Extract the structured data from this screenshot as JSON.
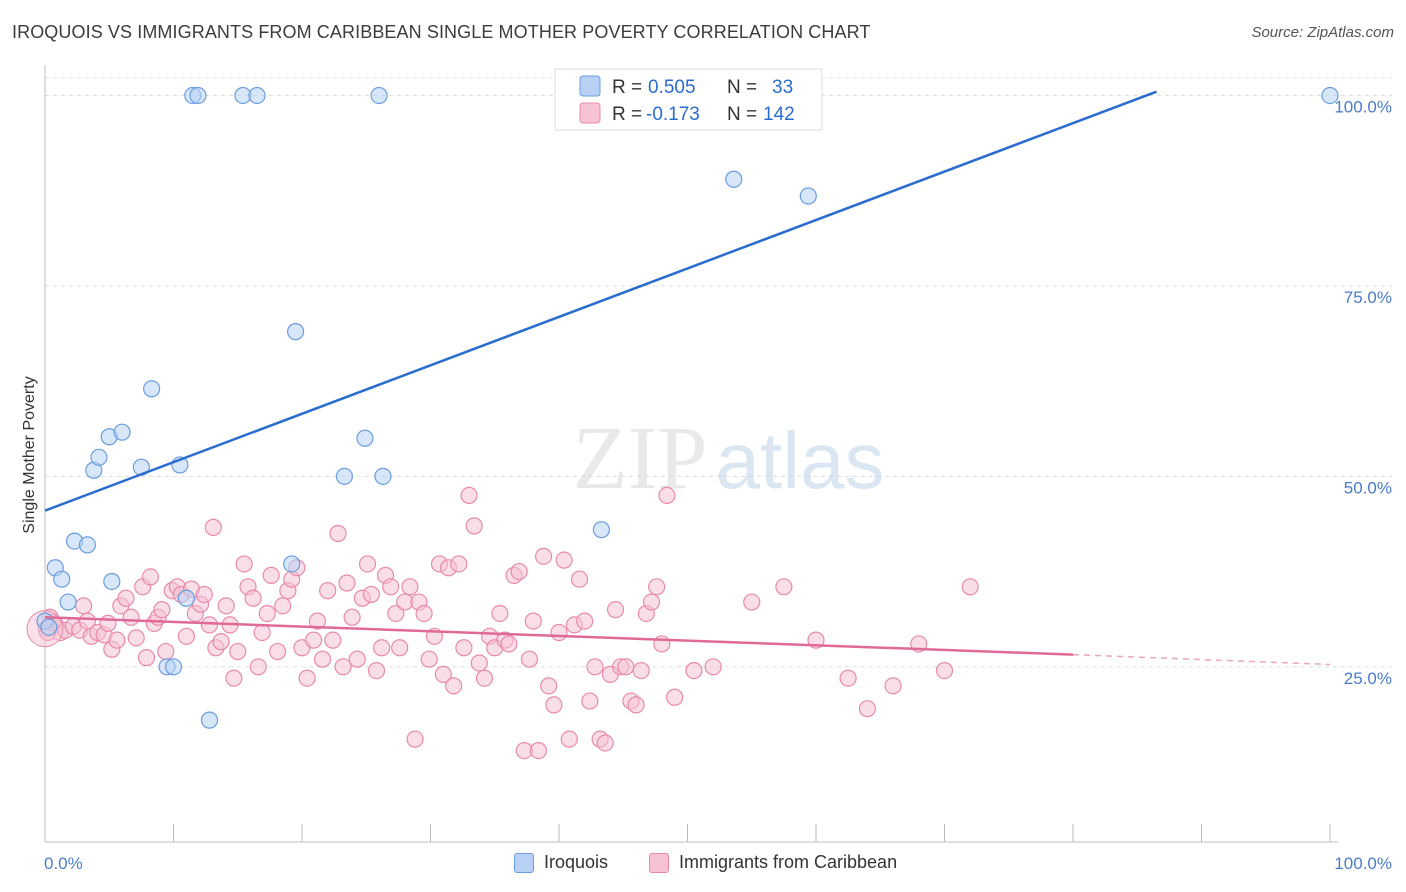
{
  "header": {
    "title": "IROQUOIS VS IMMIGRANTS FROM CARIBBEAN SINGLE MOTHER POVERTY CORRELATION CHART",
    "source": "Source: ZipAtlas.com"
  },
  "watermark": {
    "zip": "ZIP",
    "atlas": "atlas"
  },
  "colors": {
    "blue_fill": "#b8d1f5",
    "blue_stroke": "#6a9ee0",
    "blue_line": "#2a6dce",
    "pink_fill": "#f6c3d3",
    "pink_stroke": "#e98aaa",
    "pink_line": "#e06a96",
    "tick_text": "#4a7cc9"
  },
  "legend": {
    "rows": [
      {
        "r_label": "R =",
        "r_value": "0.505",
        "n_label": "N =",
        "n_value": "33"
      },
      {
        "r_label": "R =",
        "r_value": "-0.173",
        "n_label": "N =",
        "n_value": "142"
      }
    ]
  },
  "bottom_legend": {
    "items": [
      "Iroquois",
      "Immigrants from Caribbean"
    ]
  },
  "chart_data": {
    "type": "scatter",
    "title": "IROQUOIS VS IMMIGRANTS FROM CARIBBEAN SINGLE MOTHER POVERTY CORRELATION CHART",
    "xlabel": "",
    "ylabel": "Single Mother Poverty",
    "xlim": [
      0,
      100
    ],
    "ylim": [
      2,
      104
    ],
    "x_tick_labels": [
      "0.0%",
      "100.0%"
    ],
    "y_ticks": [
      25,
      50,
      75,
      100
    ],
    "y_tick_labels": [
      "25.0%",
      "50.0%",
      "75.0%",
      "100.0%"
    ],
    "grid": true,
    "legend_position": "top-center",
    "series": [
      {
        "name": "Iroquois",
        "r": 0.505,
        "n": 33,
        "trend": {
          "x0": 0,
          "y0": 45.5,
          "x1": 86.5,
          "y1": 100.5,
          "dashed_to": null
        },
        "points": [
          [
            0.0,
            31.0
          ],
          [
            0.8,
            38.0
          ],
          [
            1.3,
            36.5
          ],
          [
            1.8,
            33.5
          ],
          [
            2.3,
            41.5
          ],
          [
            3.3,
            41.0
          ],
          [
            3.8,
            50.8
          ],
          [
            4.2,
            52.5
          ],
          [
            5.0,
            55.2
          ],
          [
            6.0,
            55.8
          ],
          [
            5.2,
            36.2
          ],
          [
            7.5,
            51.2
          ],
          [
            8.3,
            61.5
          ],
          [
            9.5,
            25.0
          ],
          [
            10.0,
            25.0
          ],
          [
            10.5,
            51.5
          ],
          [
            11.0,
            34.0
          ],
          [
            12.8,
            18.0
          ],
          [
            11.5,
            100.0
          ],
          [
            11.9,
            100.0
          ],
          [
            15.4,
            100.0
          ],
          [
            16.5,
            100.0
          ],
          [
            19.2,
            38.5
          ],
          [
            19.5,
            69.0
          ],
          [
            23.3,
            50.0
          ],
          [
            24.9,
            55.0
          ],
          [
            26.0,
            100.0
          ],
          [
            26.3,
            50.0
          ],
          [
            43.3,
            43.0
          ],
          [
            53.6,
            89.0
          ],
          [
            59.4,
            86.8
          ],
          [
            100.0,
            100.0
          ],
          [
            0.3,
            30.2
          ]
        ]
      },
      {
        "name": "Immigrants from Caribbean",
        "r": -0.173,
        "n": 142,
        "trend": {
          "x0": 0,
          "y0": 31.5,
          "x1": 80,
          "y1": 26.6,
          "dashed_to": [
            100,
            25.3
          ]
        },
        "points": [
          [
            0.1,
            30.0
          ],
          [
            0.4,
            31.5
          ],
          [
            0.8,
            30.5
          ],
          [
            1.2,
            29.5
          ],
          [
            1.6,
            29.8
          ],
          [
            2.2,
            30.3
          ],
          [
            2.7,
            29.8
          ],
          [
            3.0,
            33.0
          ],
          [
            3.3,
            31.0
          ],
          [
            3.6,
            29.0
          ],
          [
            4.1,
            29.5
          ],
          [
            4.6,
            29.2
          ],
          [
            4.9,
            30.7
          ],
          [
            5.2,
            27.3
          ],
          [
            5.6,
            28.5
          ],
          [
            5.9,
            33.0
          ],
          [
            6.3,
            34.0
          ],
          [
            6.7,
            31.5
          ],
          [
            7.1,
            28.8
          ],
          [
            7.6,
            35.5
          ],
          [
            7.9,
            26.2
          ],
          [
            8.2,
            36.8
          ],
          [
            8.5,
            30.7
          ],
          [
            8.8,
            31.5
          ],
          [
            9.1,
            32.5
          ],
          [
            9.4,
            27.0
          ],
          [
            9.9,
            35.0
          ],
          [
            10.3,
            35.5
          ],
          [
            10.6,
            34.5
          ],
          [
            11.0,
            29.0
          ],
          [
            11.4,
            35.2
          ],
          [
            11.7,
            32.0
          ],
          [
            12.1,
            33.2
          ],
          [
            12.4,
            34.5
          ],
          [
            12.8,
            30.5
          ],
          [
            13.1,
            43.3
          ],
          [
            13.3,
            27.5
          ],
          [
            13.7,
            28.3
          ],
          [
            14.1,
            33.0
          ],
          [
            14.4,
            30.5
          ],
          [
            14.7,
            23.5
          ],
          [
            15.0,
            27.0
          ],
          [
            15.5,
            38.5
          ],
          [
            15.8,
            35.5
          ],
          [
            16.2,
            34.0
          ],
          [
            16.6,
            25.0
          ],
          [
            16.9,
            29.5
          ],
          [
            17.3,
            32.0
          ],
          [
            17.6,
            37.0
          ],
          [
            18.1,
            27.0
          ],
          [
            18.5,
            33.0
          ],
          [
            18.9,
            35.0
          ],
          [
            19.2,
            36.5
          ],
          [
            19.6,
            38.0
          ],
          [
            20.0,
            27.5
          ],
          [
            20.4,
            23.5
          ],
          [
            20.9,
            28.5
          ],
          [
            21.2,
            31.0
          ],
          [
            21.6,
            26.0
          ],
          [
            22.0,
            35.0
          ],
          [
            22.4,
            28.5
          ],
          [
            22.8,
            42.5
          ],
          [
            23.2,
            25.0
          ],
          [
            23.5,
            36.0
          ],
          [
            23.9,
            31.5
          ],
          [
            24.3,
            26.0
          ],
          [
            24.7,
            34.0
          ],
          [
            25.1,
            38.5
          ],
          [
            25.4,
            34.5
          ],
          [
            25.8,
            24.5
          ],
          [
            26.2,
            27.5
          ],
          [
            26.5,
            37.0
          ],
          [
            26.9,
            35.5
          ],
          [
            27.3,
            32.0
          ],
          [
            27.6,
            27.5
          ],
          [
            28.0,
            33.5
          ],
          [
            28.4,
            35.5
          ],
          [
            28.8,
            15.5
          ],
          [
            29.1,
            33.5
          ],
          [
            29.5,
            32.0
          ],
          [
            29.9,
            26.0
          ],
          [
            30.3,
            29.0
          ],
          [
            30.7,
            38.5
          ],
          [
            31.0,
            24.0
          ],
          [
            31.4,
            38.0
          ],
          [
            31.8,
            22.5
          ],
          [
            32.2,
            38.5
          ],
          [
            32.6,
            27.5
          ],
          [
            33.0,
            47.5
          ],
          [
            33.4,
            43.5
          ],
          [
            33.8,
            25.5
          ],
          [
            34.2,
            23.5
          ],
          [
            34.6,
            29.0
          ],
          [
            35.0,
            27.5
          ],
          [
            35.4,
            32.0
          ],
          [
            35.8,
            28.5
          ],
          [
            36.1,
            28.0
          ],
          [
            36.5,
            37.0
          ],
          [
            36.9,
            37.5
          ],
          [
            37.3,
            14.0
          ],
          [
            37.7,
            26.0
          ],
          [
            38.0,
            31.0
          ],
          [
            38.4,
            14.0
          ],
          [
            38.8,
            39.5
          ],
          [
            39.2,
            22.5
          ],
          [
            39.6,
            20.0
          ],
          [
            40.0,
            29.5
          ],
          [
            40.4,
            39.0
          ],
          [
            40.8,
            15.5
          ],
          [
            41.2,
            30.5
          ],
          [
            41.6,
            36.5
          ],
          [
            42.0,
            31.0
          ],
          [
            42.4,
            20.5
          ],
          [
            42.8,
            25.0
          ],
          [
            43.2,
            15.5
          ],
          [
            43.6,
            15.0
          ],
          [
            44.0,
            24.0
          ],
          [
            44.4,
            32.5
          ],
          [
            44.8,
            25.0
          ],
          [
            45.2,
            25.0
          ],
          [
            45.6,
            20.5
          ],
          [
            46.0,
            20.0
          ],
          [
            46.4,
            24.5
          ],
          [
            46.8,
            32.0
          ],
          [
            47.2,
            33.5
          ],
          [
            47.6,
            35.5
          ],
          [
            48.0,
            28.0
          ],
          [
            48.4,
            47.5
          ],
          [
            49.0,
            21.0
          ],
          [
            50.5,
            24.5
          ],
          [
            52.0,
            25.0
          ],
          [
            55.0,
            33.5
          ],
          [
            57.5,
            35.5
          ],
          [
            60.0,
            28.5
          ],
          [
            62.5,
            23.5
          ],
          [
            64.0,
            19.5
          ],
          [
            66.0,
            22.5
          ],
          [
            68.0,
            28.0
          ],
          [
            70.0,
            24.5
          ],
          [
            72.0,
            35.5
          ],
          [
            0.2,
            29.5
          ],
          [
            0.6,
            30.8
          ]
        ]
      }
    ]
  }
}
